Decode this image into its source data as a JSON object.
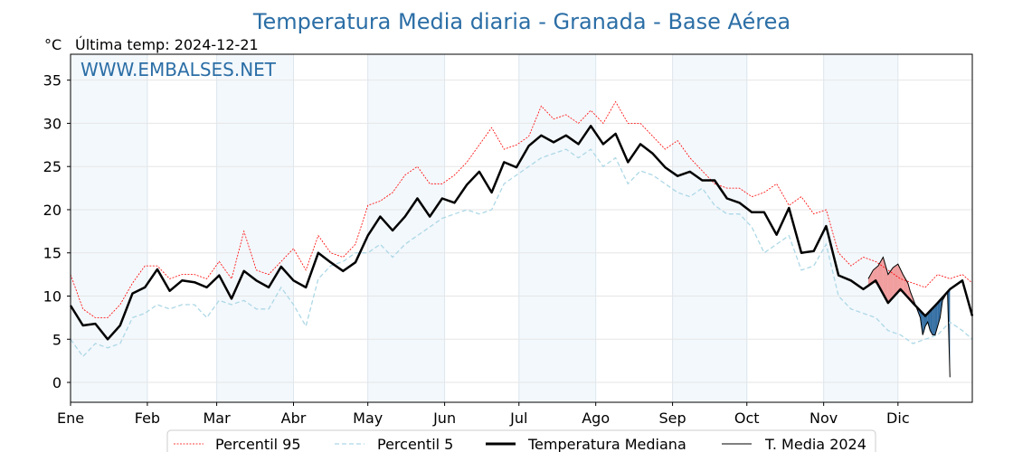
{
  "chart_data": {
    "type": "line",
    "title": "Temperatura Media diaria - Granada - Base Aérea",
    "unit_label": "°C",
    "last_temp_label": "Última temp: 2024-12-21",
    "watermark": "WWW.EMBALSES.NET",
    "xlim": [
      0,
      364
    ],
    "ylim": [
      -2.3,
      38
    ],
    "yticks": [
      0,
      5,
      10,
      15,
      20,
      25,
      30,
      35
    ],
    "months": [
      {
        "label": "Ene",
        "day": 0
      },
      {
        "label": "Feb",
        "day": 31
      },
      {
        "label": "Mar",
        "day": 59
      },
      {
        "label": "Abr",
        "day": 90
      },
      {
        "label": "May",
        "day": 120
      },
      {
        "label": "Jun",
        "day": 151
      },
      {
        "label": "Jul",
        "day": 181
      },
      {
        "label": "Ago",
        "day": 212
      },
      {
        "label": "Sep",
        "day": 243
      },
      {
        "label": "Oct",
        "day": 273
      },
      {
        "label": "Nov",
        "day": 304
      },
      {
        "label": "Dic",
        "day": 334
      }
    ],
    "days": [
      0,
      5,
      10,
      15,
      20,
      25,
      30,
      35,
      40,
      45,
      50,
      55,
      60,
      65,
      70,
      75,
      80,
      85,
      90,
      95,
      100,
      105,
      110,
      115,
      120,
      125,
      130,
      135,
      140,
      145,
      150,
      155,
      160,
      165,
      170,
      175,
      180,
      185,
      190,
      195,
      200,
      205,
      210,
      215,
      220,
      225,
      230,
      235,
      240,
      245,
      250,
      255,
      260,
      265,
      270,
      275,
      280,
      285,
      290,
      295,
      300,
      305,
      310,
      315,
      320,
      325,
      330,
      335,
      340,
      345,
      350,
      355,
      360,
      364
    ],
    "series": [
      {
        "name": "Percentil 95",
        "color": "#ff0000",
        "values": [
          12.5,
          8.5,
          7.5,
          7.5,
          9,
          11.5,
          13.5,
          13.5,
          12,
          12.5,
          12.5,
          12,
          14,
          12,
          17.5,
          13,
          12.5,
          14,
          15.5,
          13,
          17,
          15,
          14.5,
          16,
          20.5,
          21,
          22,
          24,
          25,
          23,
          23,
          24,
          25.5,
          27.5,
          29.5,
          27,
          27.5,
          28.5,
          32,
          30.5,
          31,
          30,
          31.5,
          30,
          32.5,
          30,
          30,
          28.5,
          27,
          28,
          26,
          24.5,
          23,
          22.5,
          22.5,
          21.5,
          22,
          23,
          20.5,
          21.5,
          19.5,
          20,
          15,
          13.5,
          14.5,
          14,
          13,
          12,
          11.5,
          11,
          12.5,
          12,
          12.5,
          11.5
        ]
      },
      {
        "name": "Percentil 5",
        "color": "#add8e6",
        "values": [
          5,
          3,
          4.5,
          4,
          4.5,
          7.5,
          8,
          9,
          8.5,
          9,
          9,
          7.5,
          9.5,
          9,
          9.5,
          8.5,
          8.5,
          11,
          9,
          6.5,
          12,
          13.5,
          14,
          15,
          15,
          16,
          14.5,
          16,
          17,
          18,
          19,
          19.5,
          20,
          19.5,
          20,
          23,
          24,
          25,
          26,
          26.5,
          27,
          26,
          27,
          25,
          26,
          23,
          24.5,
          24,
          23,
          22,
          21.5,
          22.5,
          20.5,
          19.5,
          19.5,
          18,
          15,
          16,
          17,
          13,
          13.5,
          16,
          10,
          8.5,
          8,
          7.5,
          6,
          5.5,
          4.5,
          5,
          5.5,
          7,
          6,
          5
        ]
      },
      {
        "name": "Temperatura Mediana",
        "color": "#000000",
        "values": [
          8.9,
          6.6,
          6.8,
          5.0,
          6.6,
          10.3,
          11,
          13.1,
          10.6,
          11.8,
          11.6,
          11,
          12.4,
          9.7,
          12.9,
          11.8,
          11,
          13.4,
          11.8,
          11,
          15,
          13.9,
          12.9,
          13.9,
          17,
          19.2,
          17.6,
          19.2,
          21.3,
          19.2,
          21.3,
          20.8,
          22.9,
          24.4,
          22,
          25.5,
          24.9,
          27.4,
          28.6,
          27.8,
          28.6,
          27.6,
          29.7,
          27.6,
          28.8,
          25.5,
          27.6,
          26.5,
          24.9,
          23.9,
          24.4,
          23.4,
          23.4,
          21.3,
          20.8,
          19.7,
          19.7,
          17.1,
          20.2,
          15,
          15.2,
          18.1,
          12.4,
          11.8,
          10.8,
          11.8,
          9.2,
          10.8,
          9.2,
          7.7,
          9.2,
          10.8,
          11.8,
          7.7
        ]
      },
      {
        "name": "T. Media 2024",
        "color": "#000000",
        "days": [
          322,
          324,
          326,
          328,
          330,
          332,
          334,
          336,
          338,
          339,
          341,
          343,
          344,
          345,
          346,
          347,
          348,
          349,
          350,
          351,
          352,
          353,
          354,
          355
        ],
        "values": [
          12.0,
          13.0,
          13.5,
          14.5,
          12.5,
          13.3,
          13.7,
          12.5,
          11.5,
          10.5,
          9.0,
          7.5,
          5.5,
          6.5,
          7.0,
          6.0,
          5.5,
          5.5,
          6.5,
          7.5,
          9.5,
          10.0,
          10.5,
          0.6
        ]
      }
    ],
    "fill_above_color": "#f08080",
    "fill_below_color": "#1f5f99",
    "shaded_months": [
      "Ene",
      "Mar",
      "May",
      "Jul",
      "Sep",
      "Nov"
    ],
    "grid": true,
    "legend_placement": "bottom-center"
  }
}
